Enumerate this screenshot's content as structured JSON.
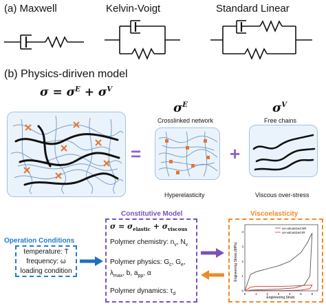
{
  "section_a": {
    "maxwell": "(a) Maxwell",
    "kelvin_voigt": "Kelvin-Voigt",
    "standard_linear": "Standard Linear"
  },
  "section_b": {
    "title": "(b) Physics-diriven model",
    "main_eq_lhs": "σ = σ",
    "main_eq_E": "E",
    "main_eq_plus": " + σ",
    "main_eq_V": "V",
    "equals": "=",
    "plus": "+",
    "sigma_E_base": "σ",
    "sigma_E_sup": "E",
    "sigma_V_base": "σ",
    "sigma_V_sup": "V",
    "crosslinked_label": "Crosslinked network",
    "free_chains_label": "Free chains",
    "hyperelasticity_label": "Hyperelasticity",
    "viscous_label": "Viscous over-stress"
  },
  "operation": {
    "title": "Operation Conditions",
    "line1": "temperature: T",
    "line2": "frequency: ω",
    "line3": "loading condition"
  },
  "constitutive": {
    "title": "Constitutive Model",
    "eq": "σ = σ",
    "eq_sub1": "elastic",
    "eq_plus": " + σ",
    "eq_sub2": "viscous",
    "chem": "Polymer chemistry: n",
    "chem_sub1": "v",
    "chem_sep": ", N",
    "chem_sub2": "v",
    "phys1": "Polymer physics: G",
    "phys1_sub1": "c",
    "phys1_sep": ", G",
    "phys1_sub2": "e",
    "phys1_end": ",",
    "phys2a": "λ",
    "phys2a_sub": "max",
    "phys2b": ", b, a",
    "phys2b_sub": "pp",
    "phys2c": ", α",
    "dyn": "Polymer dynamics: τ",
    "dyn_sub": "d"
  },
  "viscoelasticity": {
    "title": "Viscoelasticity",
    "ylabel": "Engineering Stress (MPa)",
    "xlabel": "Engineering Strain",
    "legend1": "un-vulcanized NR",
    "legend2": "un-vulcanized IR",
    "x_ticks": [
      "0",
      "1",
      "2",
      "3",
      "4",
      "5",
      "6"
    ],
    "y_ticks": [
      "0",
      "1",
      "2",
      "3",
      "4"
    ]
  },
  "colors": {
    "operation": "#1f7bd1",
    "constitutive": "#7a52b3",
    "viscoelasticity": "#f08a24",
    "blue_arrow": "#1f6fbf",
    "purple_arrow": "#7a52b3",
    "orange_arrow": "#f08a24",
    "crosslink": "#e8742a",
    "thin_chain": "#7a9ec8",
    "panel_bg": "#eaf3fb",
    "panel_border": "#9ec3e4",
    "sign_color": "#8f66c4"
  },
  "chart_data": {
    "type": "line",
    "xlabel": "Engineering Strain",
    "ylabel": "Engineering Stress (MPa)",
    "xlim": [
      0,
      6.5
    ],
    "ylim": [
      0,
      4.5
    ],
    "series": [
      {
        "name": "un-vulcanized NR",
        "x": [
          0,
          0.5,
          1,
          2,
          3,
          4,
          5,
          5.6,
          5.9,
          6,
          5.8,
          5.3,
          4.5,
          3,
          1.5,
          0.5,
          0.2
        ],
        "y": [
          0,
          1.1,
          1.3,
          1.5,
          1.7,
          2.0,
          2.6,
          3.3,
          3.8,
          3.9,
          1.0,
          0.4,
          0.2,
          0.12,
          0.08,
          0.05,
          0
        ]
      },
      {
        "name": "un-vulcanized IR",
        "x": [
          0,
          0.5,
          1,
          2,
          3,
          4,
          5,
          5.5,
          6,
          5.8,
          5,
          4,
          3,
          2,
          1,
          0.3
        ],
        "y": [
          0,
          0.25,
          0.3,
          0.3,
          0.3,
          0.32,
          0.35,
          0.38,
          0.4,
          0.15,
          0.05,
          0.03,
          0.02,
          0.02,
          0.02,
          0
        ]
      }
    ]
  }
}
